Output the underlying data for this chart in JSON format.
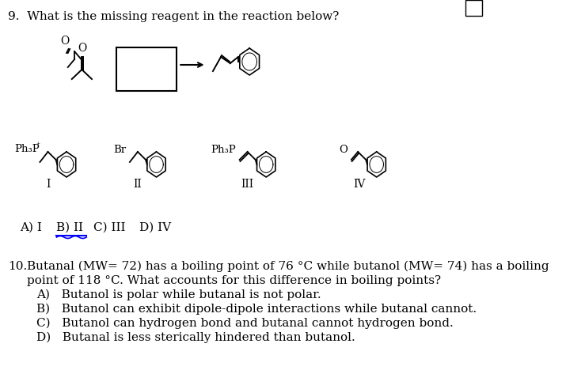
{
  "bg_color": "#ffffff",
  "q9_title": "9.  What is the missing reagent in the reaction below?",
  "q10_title": "10.",
  "q10_text_line1": "Butanal (MW= 72) has a boiling point of 76 °C while butanol (MW= 74) has a boiling",
  "q10_text_line2": "point of 118 °C. What accounts for this difference in boiling points?",
  "q10_A": "A)   Butanol is polar while butanal is not polar.",
  "q10_B": "B)   Butanol can exhibit dipole-dipole interactions while butanal cannot.",
  "q10_C": "C)   Butanol can hydrogen bond and butanal cannot hydrogen bond.",
  "q10_D": "D)   Butanal is less sterically hindered than butanol.",
  "answer_line": "A) I   B) II   C) III   D) IV",
  "font_size": 11,
  "title_font_size": 11
}
